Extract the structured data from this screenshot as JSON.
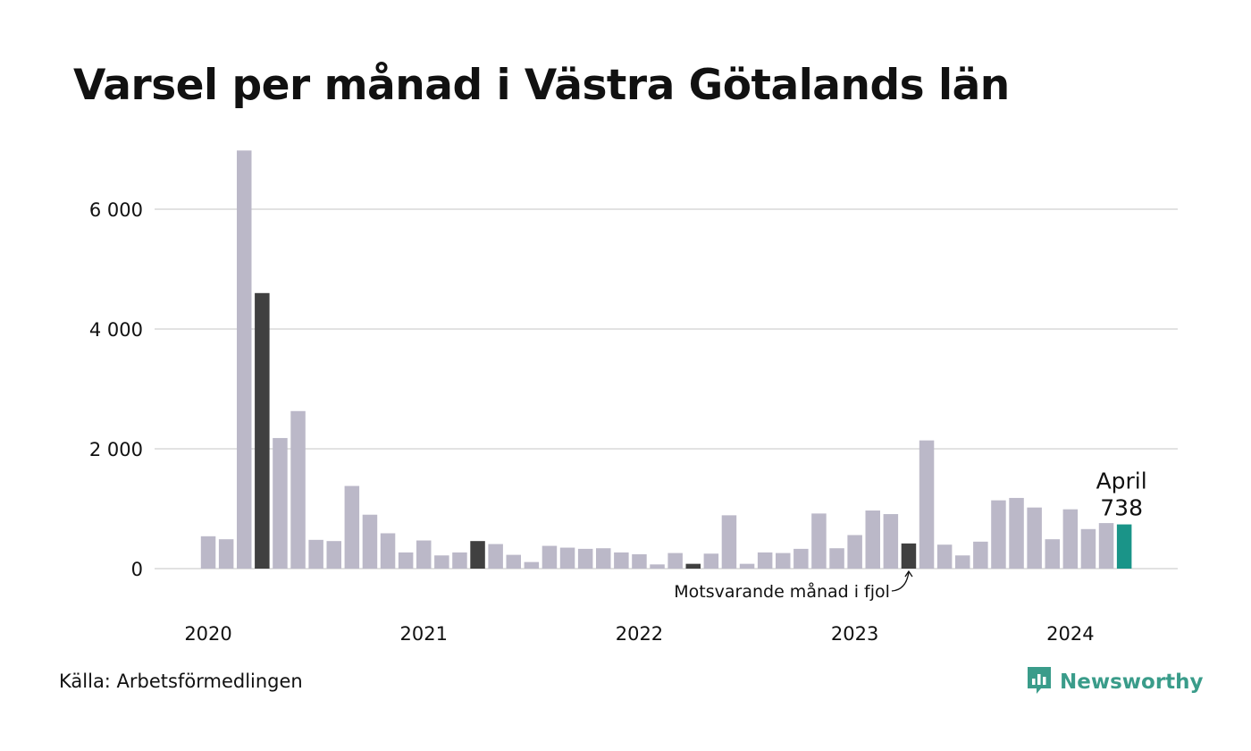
{
  "chart_data": {
    "type": "bar",
    "title": "Varsel per månad i Västra Götalands län",
    "xlabel": "",
    "ylabel": "",
    "ylim": [
      0,
      7000
    ],
    "y_ticks": [
      0,
      2000,
      4000,
      6000
    ],
    "y_tick_labels": [
      "0",
      "2 000",
      "4 000",
      "6 000"
    ],
    "x_tick_labels": [
      "2020",
      "2021",
      "2022",
      "2023",
      "2024"
    ],
    "x_tick_month_index": [
      0,
      12,
      24,
      36,
      48
    ],
    "grid": true,
    "categories": [
      "2020-01",
      "2020-02",
      "2020-03",
      "2020-04",
      "2020-05",
      "2020-06",
      "2020-07",
      "2020-08",
      "2020-09",
      "2020-10",
      "2020-11",
      "2020-12",
      "2021-01",
      "2021-02",
      "2021-03",
      "2021-04",
      "2021-05",
      "2021-06",
      "2021-07",
      "2021-08",
      "2021-09",
      "2021-10",
      "2021-11",
      "2021-12",
      "2022-01",
      "2022-02",
      "2022-03",
      "2022-04",
      "2022-05",
      "2022-06",
      "2022-07",
      "2022-08",
      "2022-09",
      "2022-10",
      "2022-11",
      "2022-12",
      "2023-01",
      "2023-02",
      "2023-03",
      "2023-04",
      "2023-05",
      "2023-06",
      "2023-07",
      "2023-08",
      "2023-09",
      "2023-10",
      "2023-11",
      "2023-12",
      "2024-01",
      "2024-02",
      "2024-03",
      "2024-04"
    ],
    "values": [
      540,
      490,
      6980,
      4600,
      2180,
      2630,
      480,
      460,
      1380,
      900,
      590,
      270,
      470,
      220,
      270,
      460,
      410,
      230,
      110,
      380,
      350,
      330,
      340,
      270,
      240,
      70,
      260,
      80,
      250,
      890,
      80,
      270,
      260,
      330,
      920,
      340,
      560,
      970,
      910,
      420,
      2140,
      400,
      220,
      450,
      1140,
      1180,
      1020,
      490,
      990,
      660,
      760,
      738
    ],
    "highlight_same_month_indices": [
      3,
      15,
      27,
      39
    ],
    "latest_index": 51,
    "annotation": "Motsvarande månad i fjol",
    "latest_label": "April",
    "latest_value_label": "738",
    "colors": {
      "default": "#bbb8c8",
      "same_month": "#404040",
      "latest": "#1a9488",
      "grid": "#e2e2e2"
    }
  },
  "footer": {
    "source": "Källa: Arbetsförmedlingen",
    "brand": "Newsworthy",
    "brand_icon": "bar-chart-speech-bubble-icon",
    "brand_color": "#3a9c8a"
  }
}
